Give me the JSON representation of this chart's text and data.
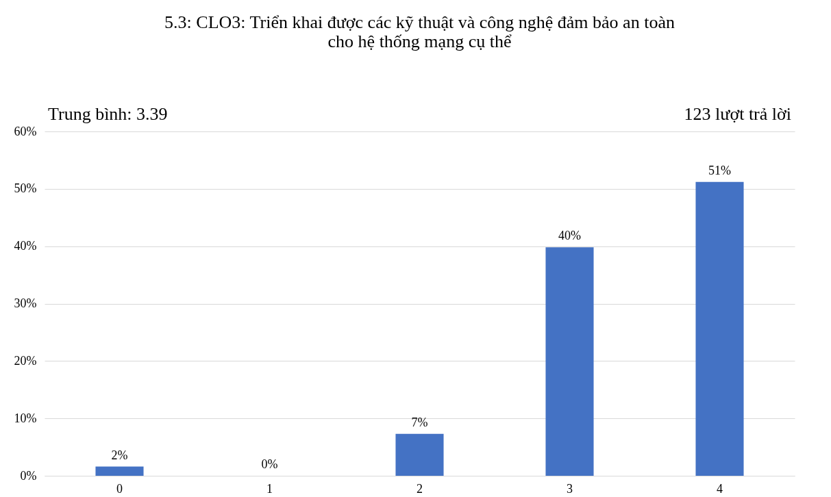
{
  "chart_data": {
    "type": "bar",
    "title": [
      "5.3: CLO3: Triển khai được các kỹ thuật và công nghệ đảm bảo an toàn",
      "cho hệ thống mạng cụ thể"
    ],
    "annotations": [
      "Trung bình:  3.39",
      "123 lượt trả lời"
    ],
    "categories": [
      "0",
      "1",
      "2",
      "3",
      "4"
    ],
    "values": [
      1.6,
      0,
      7.3,
      39.8,
      51.2
    ],
    "value_labels": [
      "2%",
      "0%",
      "7%",
      "40%",
      "51%"
    ],
    "color": "#4472c4",
    "ylim": [
      0,
      60
    ],
    "yticks": [
      {
        "value": 0,
        "label": "0%"
      },
      {
        "value": 10,
        "label": "10%"
      },
      {
        "value": 20,
        "label": "20%"
      },
      {
        "value": 30,
        "label": "30%"
      },
      {
        "value": 40,
        "label": "40%"
      },
      {
        "value": 50,
        "label": "50%"
      },
      {
        "value": 60,
        "label": "60%"
      }
    ],
    "grid": "y"
  }
}
